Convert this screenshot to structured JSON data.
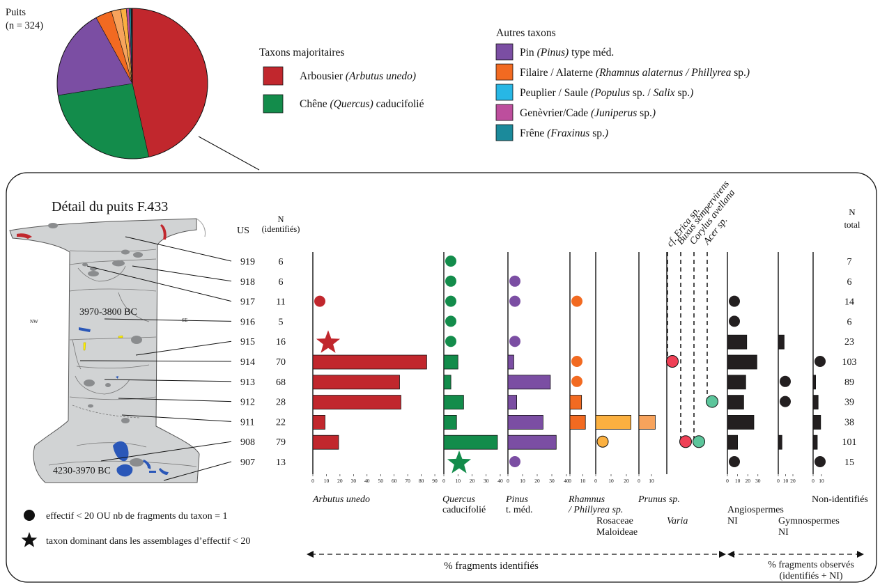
{
  "pie": {
    "title": "Puits",
    "n_label": "(n = 324)",
    "slices": [
      {
        "taxon": "Arbousier",
        "value": 46.5,
        "color": "#c1272d"
      },
      {
        "taxon": "Chêne",
        "value": 26.0,
        "color": "#138c4b"
      },
      {
        "taxon": "Pin",
        "value": 19.5,
        "color": "#7b4ea3"
      },
      {
        "taxon": "Filaire / Alaterne",
        "value": 3.5,
        "color": "#f26a21"
      },
      {
        "taxon": "Prunus",
        "value": 2.0,
        "color": "#f7a35c"
      },
      {
        "taxon": "Rosaceae",
        "value": 1.2,
        "color": "#fbb040"
      },
      {
        "taxon": "Genèvrier",
        "value": 0.6,
        "color": "#bd4e9d"
      },
      {
        "taxon": "Frêne",
        "value": 0.4,
        "color": "#1b8a9b"
      },
      {
        "taxon": "Autres",
        "value": 0.3,
        "color": "#222222"
      }
    ]
  },
  "legend": {
    "major_title": "Taxons majoritaires",
    "major": [
      {
        "name": "Arbousier",
        "latin": "(Arbutus unedo)",
        "suffix": "",
        "color": "#c1272d"
      },
      {
        "name": "Chêne",
        "latin": "(Quercus)",
        "suffix": "caducifolié",
        "color": "#138c4b"
      }
    ],
    "other_title": "Autres taxons",
    "other": [
      {
        "parts": [
          {
            "t": "Pin ",
            "i": false
          },
          {
            "t": "(Pinus)",
            "i": true
          },
          {
            "t": " type méd.",
            "i": false
          }
        ],
        "color": "#7b4ea3"
      },
      {
        "parts": [
          {
            "t": "Filaire / Alaterne ",
            "i": false
          },
          {
            "t": "(Rhamnus alaternus / Phillyrea",
            "i": true
          },
          {
            "t": " sp.",
            "i": false
          },
          {
            "t": ")",
            "i": true
          }
        ],
        "color": "#f26a21"
      },
      {
        "parts": [
          {
            "t": "Peuplier / Saule ",
            "i": false
          },
          {
            "t": "(Populus",
            "i": true
          },
          {
            "t": " sp. / ",
            "i": false
          },
          {
            "t": "Salix",
            "i": true
          },
          {
            "t": " sp.",
            "i": false
          },
          {
            "t": ")",
            "i": true
          }
        ],
        "color": "#27b7e5"
      },
      {
        "parts": [
          {
            "t": "Genèvrier/Cade ",
            "i": false
          },
          {
            "t": "(Juniperus",
            "i": true
          },
          {
            "t": " sp.",
            "i": false
          },
          {
            "t": ")",
            "i": true
          }
        ],
        "color": "#bd4e9d"
      },
      {
        "parts": [
          {
            "t": "Frêne ",
            "i": false
          },
          {
            "t": "(Fraxinus",
            "i": true
          },
          {
            "t": " sp.",
            "i": false
          },
          {
            "t": ")",
            "i": true
          }
        ],
        "color": "#1b8a9b"
      }
    ]
  },
  "panel": {
    "title": "Détail du puits F.433",
    "us_header": "US",
    "n_header": [
      "N",
      "(identifiés)"
    ],
    "ntotal_header": [
      "N",
      "total"
    ],
    "date_top": "3970-3800 BC",
    "date_bottom": "4230-3970 BC",
    "nw": "NW",
    "se": "SE",
    "varia_labels": [
      "cf. Erica sp.",
      "Buxus sempervirens",
      "Corylus avellana",
      "Acer sp."
    ],
    "col_labels": {
      "arbutus": "Arbutus unedo",
      "quercus": [
        "Quercus",
        "caducifolié"
      ],
      "pinus": [
        "Pinus",
        "t. méd."
      ],
      "rhamnus": [
        "Rhamnus",
        "/ Phillyrea sp."
      ],
      "rosaceae": [
        "Rosaceae",
        "Maloideae"
      ],
      "prunus": "Prunus sp.",
      "varia": "Varia",
      "angio": [
        "Angiospermes",
        "NI"
      ],
      "gymno": [
        "Gymnospermes",
        "NI"
      ],
      "nonid": "Non-identifiés"
    },
    "legend_dot": "effectif < 20 OU nb de fragments du taxon = 1",
    "legend_star": "taxon dominant dans les assemblages d’effectif < 20",
    "axis_identified": "%  fragments identifiés",
    "axis_observed": [
      "% fragments observés",
      "(identifiés + NI)"
    ]
  },
  "chart_data": {
    "type": "bar",
    "title": "Détail du puits F.433",
    "categories": [
      "919",
      "918",
      "917",
      "916",
      "915",
      "914",
      "913",
      "912",
      "911",
      "908",
      "907"
    ],
    "n_identified": [
      6,
      6,
      11,
      5,
      16,
      70,
      68,
      28,
      22,
      79,
      13
    ],
    "n_total": [
      7,
      6,
      14,
      6,
      23,
      103,
      89,
      39,
      38,
      101,
      15
    ],
    "series": [
      {
        "name": "Arbutus unedo",
        "group": "identified",
        "color": "#c1272d",
        "ticks": [
          0,
          10,
          20,
          30,
          40,
          50,
          60,
          70,
          80,
          90
        ],
        "max": 90,
        "values": [
          null,
          null,
          "dot",
          null,
          "star",
          84,
          64,
          65,
          9,
          19,
          null
        ]
      },
      {
        "name": "Quercus caducifolié",
        "group": "identified",
        "color": "#138c4b",
        "ticks": [
          0,
          10,
          20,
          30,
          40
        ],
        "max": 40,
        "values": [
          "dot",
          "dot",
          "dot",
          "dot",
          "dot",
          10,
          5,
          14,
          9,
          38,
          "star"
        ]
      },
      {
        "name": "Pinus t. méd.",
        "group": "identified",
        "color": "#7b4ea3",
        "ticks": [
          0,
          10,
          20,
          30,
          40
        ],
        "max": 40,
        "values": [
          null,
          "dot",
          "dot",
          null,
          "dot",
          4,
          29,
          6,
          24,
          33,
          "dot"
        ]
      },
      {
        "name": "Rhamnus / Phillyrea sp.",
        "group": "identified",
        "color": "#f26a21",
        "ticks": [
          0,
          10
        ],
        "max": 15,
        "values": [
          null,
          null,
          "dot",
          null,
          null,
          "dot",
          "dot",
          9,
          12,
          null,
          null
        ]
      },
      {
        "name": "Rosaceae Maloideae",
        "group": "identified",
        "color": "#fbb040",
        "ticks": [
          0,
          10,
          20
        ],
        "max": 25,
        "values": [
          null,
          null,
          null,
          null,
          null,
          null,
          null,
          null,
          23,
          "dot",
          null
        ]
      },
      {
        "name": "Prunus sp.",
        "group": "identified",
        "color": "#f7a35c",
        "ticks": [
          0,
          10
        ],
        "max": 15,
        "values": [
          null,
          null,
          null,
          null,
          null,
          null,
          null,
          null,
          13,
          null,
          null
        ]
      },
      {
        "name": "Angiospermes NI",
        "group": "observed",
        "color": "#231f20",
        "ticks": [
          0,
          10,
          20,
          30
        ],
        "max": 30,
        "values": [
          null,
          null,
          "dot",
          "dot",
          19,
          29,
          18,
          16,
          26,
          10,
          "dot"
        ]
      },
      {
        "name": "Gymnospermes NI",
        "group": "observed",
        "color": "#231f20",
        "ticks": [
          0,
          10,
          20
        ],
        "max": 20,
        "values": [
          null,
          null,
          null,
          null,
          8,
          null,
          "dot",
          "dot",
          null,
          5,
          null
        ]
      },
      {
        "name": "Non-identifiés",
        "group": "observed",
        "color": "#231f20",
        "ticks": [
          0,
          10
        ],
        "max": 20,
        "values": [
          null,
          null,
          null,
          null,
          null,
          "dot",
          3,
          6,
          9,
          5,
          "dot"
        ]
      }
    ],
    "varia": [
      {
        "name": "cf. Erica sp.",
        "color": "#ef4056",
        "dots_at": [
          "914"
        ]
      },
      {
        "name": "Buxus sempervirens",
        "color": "#ef4056",
        "dots_at": [
          "908"
        ]
      },
      {
        "name": "Corylus avellana",
        "color": "#5cc59b",
        "dots_at": [
          "908"
        ]
      },
      {
        "name": "Acer sp.",
        "color": "#5cc59b",
        "dots_at": [
          "912"
        ]
      }
    ]
  }
}
